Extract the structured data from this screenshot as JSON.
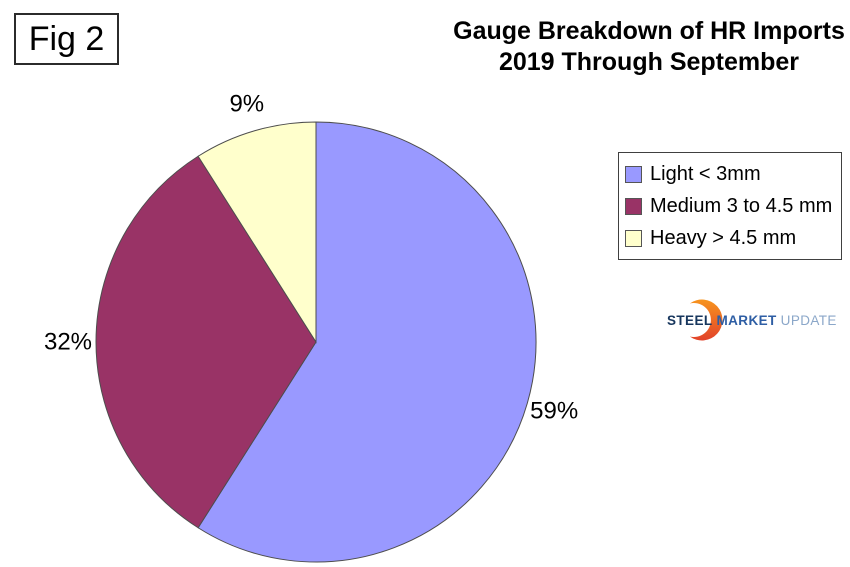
{
  "figure_label": "Fig 2",
  "title": {
    "line1": "Gauge Breakdown of HR Imports",
    "line2": "2019 Through September"
  },
  "legend": {
    "items": [
      {
        "label": "Light < 3mm",
        "color": "#9999FF"
      },
      {
        "label": "Medium 3 to 4.5 mm",
        "color": "#993366"
      },
      {
        "label": "Heavy > 4.5 mm",
        "color": "#FFFFCC"
      }
    ]
  },
  "logo": {
    "word1": "STEEL",
    "word2": "MARKET",
    "word3": "UPDATE",
    "accent_top_color": "#F7941E",
    "accent_bottom_color": "#E2422A"
  },
  "chart_data": {
    "type": "pie",
    "title": "Gauge Breakdown of HR Imports 2019 Through September",
    "categories": [
      "Light < 3mm",
      "Medium 3 to 4.5 mm",
      "Heavy > 4.5 mm"
    ],
    "values": [
      59,
      32,
      9
    ],
    "unit": "%",
    "labels": [
      "59%",
      "32%",
      "9%"
    ],
    "colors": [
      "#9999FF",
      "#993366",
      "#FFFFCC"
    ],
    "outline_color": "#4d4d4d",
    "start_angle_deg": 0,
    "direction": "clockwise",
    "legend_position": "right"
  }
}
